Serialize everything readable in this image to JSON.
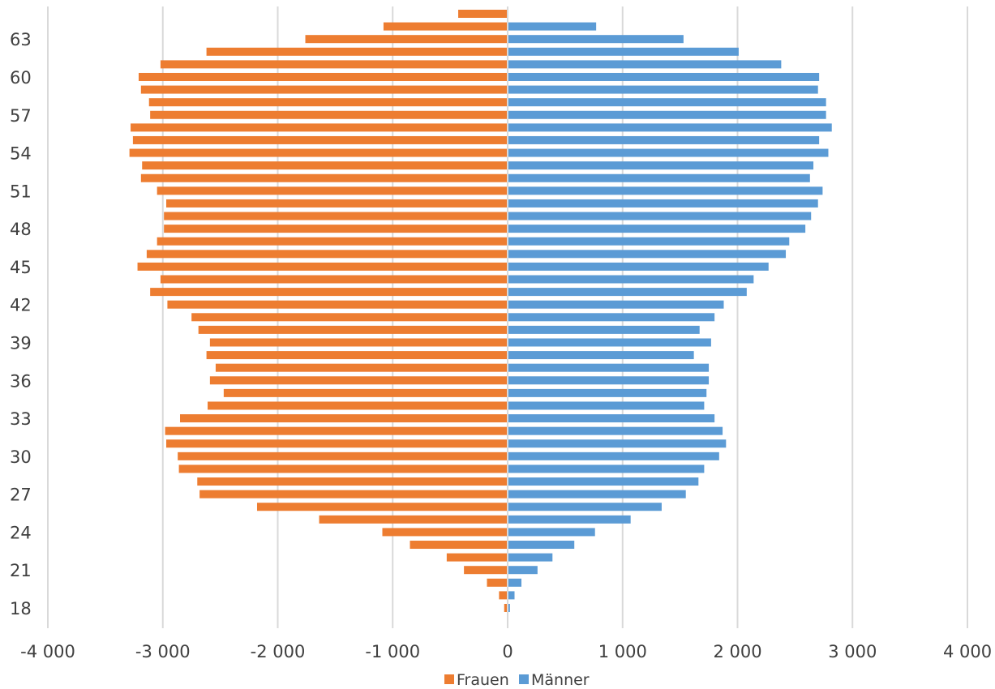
{
  "chart_data": {
    "type": "bar",
    "orientation": "horizontal",
    "title": "",
    "xlabel": "",
    "ylabel": "",
    "xlim": [
      -4000,
      4000
    ],
    "x_ticks": [
      -4000,
      -3000,
      -2000,
      -1000,
      0,
      1000,
      2000,
      3000,
      4000
    ],
    "x_tick_labels": [
      "-4 000",
      "-3 000",
      "-2 000",
      "-1 000",
      "0",
      "1 000",
      "2 000",
      "3 000",
      "4 000"
    ],
    "y_tick_labels": [
      "18",
      "21",
      "24",
      "27",
      "30",
      "33",
      "36",
      "39",
      "42",
      "45",
      "48",
      "51",
      "54",
      "57",
      "60",
      "63"
    ],
    "grid": "vertical",
    "legend_position": "bottom",
    "categories": [
      18,
      19,
      20,
      21,
      22,
      23,
      24,
      25,
      26,
      27,
      28,
      29,
      30,
      31,
      32,
      33,
      34,
      35,
      36,
      37,
      38,
      39,
      40,
      41,
      42,
      43,
      44,
      45,
      46,
      47,
      48,
      49,
      50,
      51,
      52,
      53,
      54,
      55,
      56,
      57,
      58,
      59,
      60,
      61,
      62,
      63,
      64,
      65
    ],
    "series": [
      {
        "name": "Frauen",
        "color": "#ED7D31",
        "values": [
          -30,
          -75,
          -180,
          -380,
          -530,
          -850,
          -1090,
          -1640,
          -2180,
          -2680,
          -2700,
          -2860,
          -2870,
          -2970,
          -2980,
          -2850,
          -2610,
          -2470,
          -2590,
          -2540,
          -2620,
          -2590,
          -2690,
          -2750,
          -2960,
          -3110,
          -3020,
          -3220,
          -3140,
          -3050,
          -2990,
          -2990,
          -2970,
          -3050,
          -3190,
          -3180,
          -3290,
          -3260,
          -3280,
          -3110,
          -3120,
          -3190,
          -3210,
          -3020,
          -2620,
          -1760,
          -1080,
          -430
        ]
      },
      {
        "name": "Männer",
        "color": "#5B9BD5",
        "values": [
          20,
          60,
          120,
          260,
          390,
          580,
          760,
          1070,
          1340,
          1550,
          1660,
          1710,
          1840,
          1900,
          1870,
          1800,
          1710,
          1730,
          1750,
          1750,
          1620,
          1770,
          1670,
          1800,
          1880,
          2080,
          2140,
          2270,
          2420,
          2450,
          2590,
          2640,
          2700,
          2740,
          2630,
          2660,
          2790,
          2710,
          2820,
          2770,
          2770,
          2700,
          2710,
          2380,
          2010,
          1530,
          770,
          0
        ]
      }
    ]
  },
  "legend": {
    "frauen_label": "Frauen",
    "maenner_label": "Männer"
  }
}
